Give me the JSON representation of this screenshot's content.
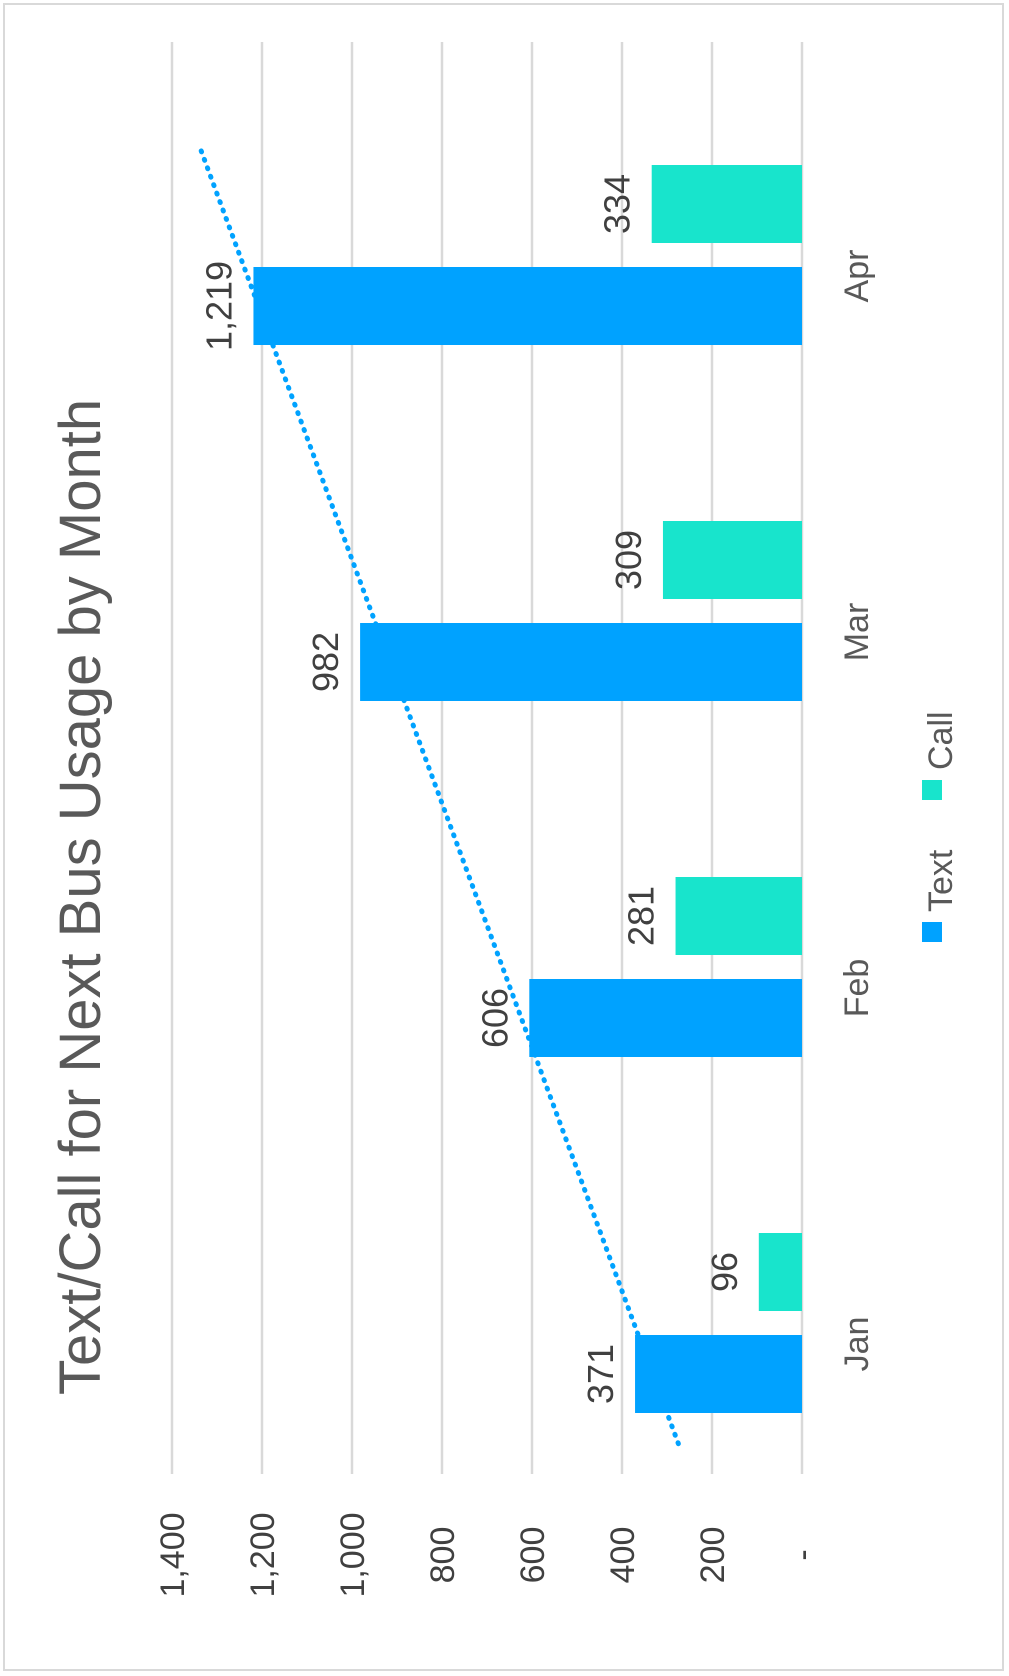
{
  "chart_data": {
    "type": "bar",
    "orientation": "rotated-90",
    "title": "Text/Call for Next Bus Usage by Month",
    "categories": [
      "Jan",
      "Feb",
      "Mar",
      "Apr"
    ],
    "series": [
      {
        "name": "Text",
        "values": [
          371,
          606,
          982,
          1219
        ],
        "color": "#00a2ff",
        "data_labels": [
          "371",
          "606",
          "982",
          "1,219"
        ]
      },
      {
        "name": "Call",
        "values": [
          96,
          281,
          309,
          334
        ],
        "color": "#18e4cc",
        "data_labels": [
          "96",
          "281",
          "309",
          "334"
        ]
      }
    ],
    "trendline": {
      "series": "Text",
      "type": "linear",
      "style": "dotted",
      "color": "#00a2ff"
    },
    "ylim": [
      0,
      1400
    ],
    "yticks": [
      0,
      200,
      400,
      600,
      800,
      1000,
      1200,
      1400
    ],
    "ytick_labels": [
      "-",
      "200",
      "400",
      "600",
      "800",
      "1,000",
      "1,200",
      "1,400"
    ],
    "grid": true,
    "legend": "bottom"
  }
}
